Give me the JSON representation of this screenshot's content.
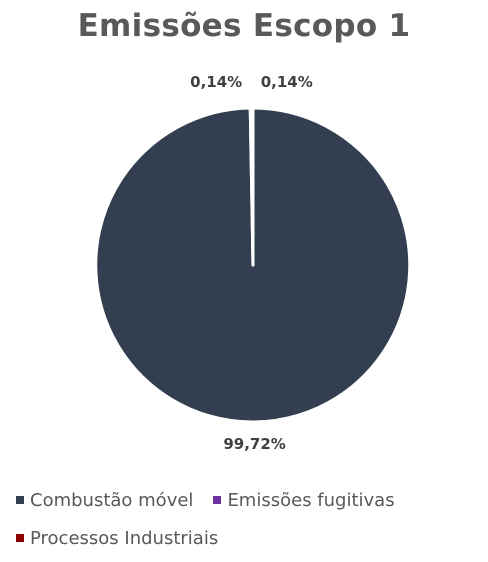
{
  "chart_data": {
    "type": "pie",
    "title": "Emissões Escopo 1",
    "categories": [
      "Combustão móvel",
      "Emissões fugitivas",
      "Processos Industriais"
    ],
    "values": [
      99.72,
      0.14,
      0.14
    ],
    "data_labels": [
      "99,72%",
      "0,14%",
      "0,14%"
    ],
    "colors": [
      "#333f50",
      "#7030a0",
      "#8b0000"
    ],
    "legend_position": "bottom"
  }
}
